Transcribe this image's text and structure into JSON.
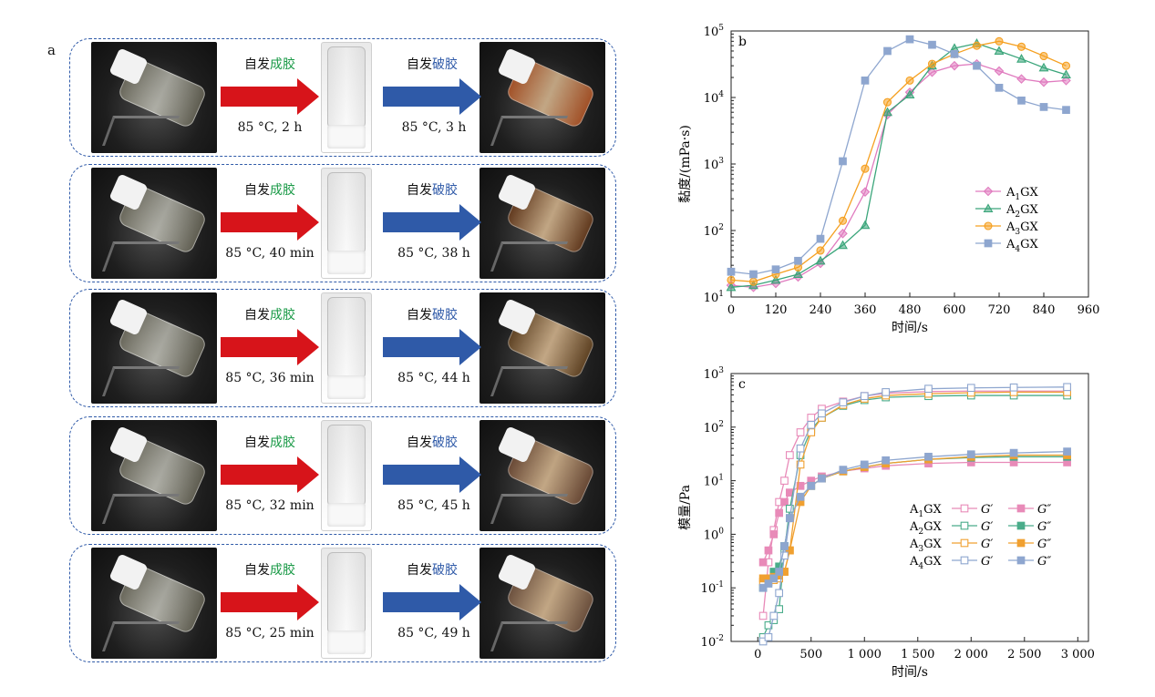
{
  "panel_a": {
    "label": "a",
    "rows": [
      {
        "step1_prefix": "自发",
        "step1_word": "成胶",
        "cond1": "85 °C, 2 h",
        "step2_prefix": "自发",
        "step2_word": "破胶",
        "cond2": "85 °C, 3 h",
        "final_color": "#b85a2a"
      },
      {
        "step1_prefix": "自发",
        "step1_word": "成胶",
        "cond1": "85 °C, 40 min",
        "step2_prefix": "自发",
        "step2_word": "破胶",
        "cond2": "85 °C, 38 h",
        "final_color": "#6e4020"
      },
      {
        "step1_prefix": "自发",
        "step1_word": "成胶",
        "cond1": "85 °C, 36 min",
        "step2_prefix": "自发",
        "step2_word": "破胶",
        "cond2": "85 °C, 44 h",
        "final_color": "#6b4a26"
      },
      {
        "step1_prefix": "自发",
        "step1_word": "成胶",
        "cond1": "85 °C, 32 min",
        "step2_prefix": "自发",
        "step2_word": "破胶",
        "cond2": "85 °C, 45 h",
        "final_color": "#76513a"
      },
      {
        "step1_prefix": "自发",
        "step1_word": "成胶",
        "cond1": "85 °C, 25 min",
        "step2_prefix": "自发",
        "step2_word": "破胶",
        "cond2": "85 °C, 49 h",
        "final_color": "#7a5a44"
      }
    ],
    "colors": {
      "gelation_arrow": "#d7141a",
      "breaking_arrow": "#2f5aa8",
      "gelation_word": "#1a9a47",
      "breaking_word": "#2f5aa8"
    }
  },
  "chart_data": [
    {
      "panel": "b",
      "type": "line",
      "y_scale": "log",
      "xlabel": "时间/s",
      "ylabel": "黏度/(mPa·s)",
      "xlim": [
        0,
        960
      ],
      "ylim": [
        10,
        100000
      ],
      "xticks": [
        "0",
        "120",
        "240",
        "360",
        "480",
        "600",
        "720",
        "840",
        "960"
      ],
      "yticks": [
        {
          "mant": "10",
          "exp": "1"
        },
        {
          "mant": "10",
          "exp": "2"
        },
        {
          "mant": "10",
          "exp": "3"
        },
        {
          "mant": "10",
          "exp": "4"
        },
        {
          "mant": "10",
          "exp": "5"
        }
      ],
      "legend_position": "right",
      "series": [
        {
          "name_main": "A",
          "name_sub": "1",
          "name_rest": "GX",
          "color": "#e07bbf",
          "marker": "diamond",
          "x": [
            0,
            60,
            120,
            180,
            240,
            300,
            360,
            420,
            480,
            540,
            600,
            660,
            720,
            780,
            840,
            900
          ],
          "y": [
            15,
            14,
            16,
            20,
            32,
            90,
            380,
            5500,
            12000,
            24000,
            30000,
            32000,
            25000,
            19000,
            17000,
            18000
          ]
        },
        {
          "name_main": "A",
          "name_sub": "2",
          "name_rest": "GX",
          "color": "#3aa57a",
          "marker": "triangle",
          "x": [
            0,
            60,
            120,
            180,
            240,
            300,
            360,
            420,
            480,
            540,
            600,
            660,
            720,
            780,
            840,
            900
          ],
          "y": [
            14,
            15,
            18,
            22,
            35,
            60,
            120,
            6000,
            11000,
            30000,
            55000,
            65000,
            50000,
            38000,
            28000,
            22000
          ]
        },
        {
          "name_main": "A",
          "name_sub": "3",
          "name_rest": "GX",
          "color": "#f5a020",
          "marker": "circle",
          "x": [
            0,
            60,
            120,
            180,
            240,
            300,
            360,
            420,
            480,
            540,
            600,
            660,
            720,
            780,
            840,
            900
          ],
          "y": [
            18,
            17,
            22,
            28,
            50,
            140,
            850,
            8500,
            18000,
            32000,
            45000,
            60000,
            70000,
            58000,
            42000,
            30000
          ]
        },
        {
          "name_main": "A",
          "name_sub": "4",
          "name_rest": "GX",
          "color": "#8ea6cf",
          "marker": "square",
          "x": [
            0,
            60,
            120,
            180,
            240,
            300,
            360,
            420,
            480,
            540,
            600,
            660,
            720,
            780,
            840,
            900
          ],
          "y": [
            24,
            22,
            26,
            35,
            75,
            1100,
            18000,
            50000,
            75000,
            62000,
            45000,
            30000,
            14000,
            9000,
            7200,
            6500
          ]
        }
      ]
    },
    {
      "panel": "c",
      "type": "line",
      "y_scale": "log",
      "xlabel": "时间/s",
      "ylabel": "模量/Pa",
      "xlim": [
        -250,
        3100
      ],
      "ylim": [
        0.01,
        1000
      ],
      "xticks": [
        "0",
        "500",
        "1 000",
        "1 500",
        "2 000",
        "2 500",
        "3 000"
      ],
      "xtick_values": [
        0,
        500,
        1000,
        1500,
        2000,
        2500,
        3000
      ],
      "yticks": [
        {
          "mant": "10",
          "exp": "-2"
        },
        {
          "mant": "10",
          "exp": "-1"
        },
        {
          "mant": "10",
          "exp": "0"
        },
        {
          "mant": "10",
          "exp": "1"
        },
        {
          "mant": "10",
          "exp": "2"
        },
        {
          "mant": "10",
          "exp": "3"
        }
      ],
      "legend_position": "right",
      "legend_g1": "G′",
      "legend_g2": "G″",
      "series": [
        {
          "name_main": "A",
          "name_sub": "1",
          "name_rest": "GX",
          "color": "#e88ab8",
          "modulus": "G′",
          "filled": false,
          "x": [
            50,
            100,
            150,
            200,
            250,
            300,
            400,
            500,
            600,
            800,
            1000,
            1200,
            1600,
            2000,
            2400,
            2900
          ],
          "y": [
            0.03,
            0.3,
            1.2,
            4,
            10,
            30,
            80,
            150,
            220,
            300,
            380,
            430,
            460,
            470,
            470,
            470
          ]
        },
        {
          "name_main": "A",
          "name_sub": "1",
          "name_rest": "GX",
          "color": "#e88ab8",
          "modulus": "G″",
          "filled": true,
          "x": [
            50,
            100,
            150,
            200,
            250,
            300,
            400,
            500,
            600,
            800,
            1000,
            1200,
            1600,
            2000,
            2400,
            2900
          ],
          "y": [
            0.3,
            0.5,
            1,
            2.5,
            4,
            6,
            8,
            10,
            12,
            15,
            17,
            19,
            21,
            22,
            22,
            22
          ]
        },
        {
          "name_main": "A",
          "name_sub": "2",
          "name_rest": "GX",
          "color": "#4aac8a",
          "modulus": "G′",
          "filled": false,
          "x": [
            50,
            100,
            150,
            200,
            250,
            300,
            400,
            500,
            600,
            800,
            1000,
            1200,
            1600,
            2000,
            2400,
            2900
          ],
          "y": [
            0.012,
            0.02,
            0.025,
            0.04,
            0.5,
            3,
            30,
            90,
            150,
            250,
            320,
            360,
            380,
            390,
            390,
            390
          ]
        },
        {
          "name_main": "A",
          "name_sub": "2",
          "name_rest": "GX",
          "color": "#4aac8a",
          "modulus": "G″",
          "filled": true,
          "x": [
            50,
            100,
            150,
            200,
            250,
            300,
            400,
            500,
            600,
            800,
            1000,
            1200,
            1600,
            2000,
            2400,
            2900
          ],
          "y": [
            0.1,
            0.15,
            0.2,
            0.25,
            0.6,
            2,
            5,
            8,
            11,
            15,
            18,
            21,
            25,
            27,
            28,
            28
          ]
        },
        {
          "name_main": "A",
          "name_sub": "3",
          "name_rest": "GX",
          "color": "#f0a030",
          "modulus": "G′",
          "filled": false,
          "x": [
            50,
            100,
            150,
            200,
            250,
            300,
            400,
            500,
            600,
            800,
            1000,
            1200,
            1600,
            2000,
            2400,
            2900
          ],
          "y": [
            0.13,
            0.13,
            0.14,
            0.15,
            0.2,
            0.5,
            20,
            80,
            150,
            260,
            340,
            390,
            420,
            440,
            450,
            450
          ]
        },
        {
          "name_main": "A",
          "name_sub": "3",
          "name_rest": "GX",
          "color": "#f0a030",
          "modulus": "G″",
          "filled": true,
          "x": [
            50,
            100,
            150,
            200,
            250,
            300,
            400,
            500,
            600,
            800,
            1000,
            1200,
            1600,
            2000,
            2400,
            2900
          ],
          "y": [
            0.15,
            0.15,
            0.16,
            0.17,
            0.2,
            0.5,
            4,
            8,
            11,
            15,
            18,
            21,
            25,
            28,
            30,
            30
          ]
        },
        {
          "name_main": "A",
          "name_sub": "4",
          "name_rest": "GX",
          "color": "#8ea6cf",
          "modulus": "G′",
          "filled": false,
          "x": [
            50,
            100,
            150,
            200,
            250,
            300,
            400,
            500,
            600,
            800,
            1000,
            1200,
            1600,
            2000,
            2400,
            2900
          ],
          "y": [
            0.01,
            0.012,
            0.03,
            0.08,
            0.4,
            2,
            40,
            110,
            180,
            290,
            380,
            450,
            520,
            540,
            550,
            560
          ]
        },
        {
          "name_main": "A",
          "name_sub": "4",
          "name_rest": "GX",
          "color": "#8ea6cf",
          "modulus": "G″",
          "filled": true,
          "x": [
            50,
            100,
            150,
            200,
            250,
            300,
            400,
            500,
            600,
            800,
            1000,
            1200,
            1600,
            2000,
            2400,
            2900
          ],
          "y": [
            0.1,
            0.12,
            0.15,
            0.2,
            0.6,
            2,
            5,
            8,
            11,
            16,
            20,
            24,
            28,
            31,
            33,
            35
          ]
        }
      ]
    }
  ]
}
